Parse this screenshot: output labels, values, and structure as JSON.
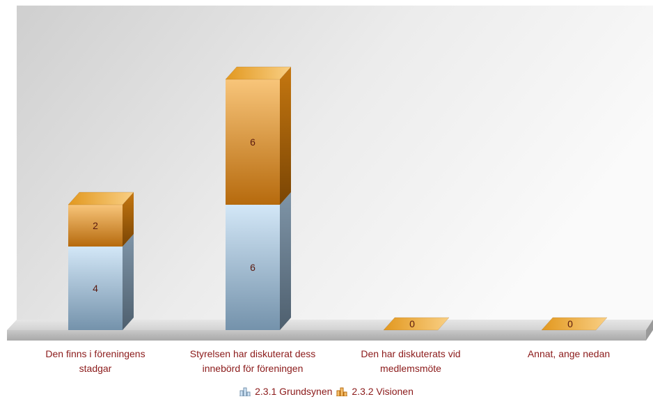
{
  "chart_data": {
    "type": "bar",
    "stacked": true,
    "three_d": true,
    "categories": [
      [
        "Den finns i föreningens",
        "stadgar"
      ],
      [
        "Styrelsen har diskuterat dess",
        "innebörd för föreningen"
      ],
      [
        "Den har diskuterats vid",
        "medlemsmöte"
      ],
      [
        "Annat, ange nedan"
      ]
    ],
    "series": [
      {
        "name": "2.3.1 Grundsynen",
        "values": [
          4,
          6,
          0,
          0
        ],
        "color": "#93b3cc"
      },
      {
        "name": "2.3.2 Visionen",
        "values": [
          2,
          6,
          0,
          0
        ],
        "color": "#d98d1c"
      }
    ],
    "data_labels": [
      [
        "4",
        "6",
        "",
        ""
      ],
      [
        "2",
        "6",
        "0",
        "0"
      ]
    ],
    "legend_position": "bottom",
    "grid": false,
    "ylim": [
      0,
      12
    ]
  }
}
